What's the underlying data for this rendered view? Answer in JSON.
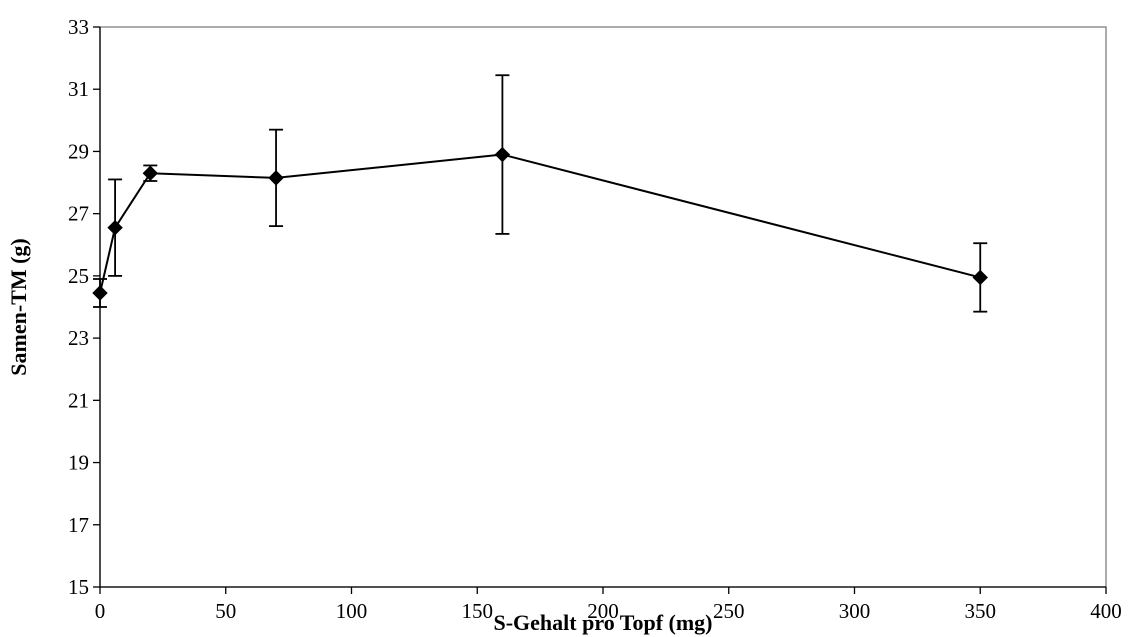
{
  "chart_data": {
    "type": "line",
    "title": "",
    "xlabel": "S-Gehalt pro Topf (mg)",
    "ylabel": "Samen-TM (g)",
    "xlim": [
      0,
      400
    ],
    "ylim": [
      15,
      33
    ],
    "x_ticks": [
      0,
      50,
      100,
      150,
      200,
      250,
      300,
      350,
      400
    ],
    "y_ticks": [
      15,
      17,
      19,
      21,
      23,
      25,
      27,
      29,
      31,
      33
    ],
    "grid": false,
    "legend": "none",
    "series": [
      {
        "x": [
          0,
          6,
          20,
          70,
          160,
          350
        ],
        "y": [
          24.45,
          26.55,
          28.3,
          28.15,
          28.9,
          24.95
        ],
        "error": [
          0.45,
          1.55,
          0.25,
          1.55,
          2.55,
          1.1
        ],
        "marker": "diamond",
        "color": "#000000"
      }
    ]
  }
}
